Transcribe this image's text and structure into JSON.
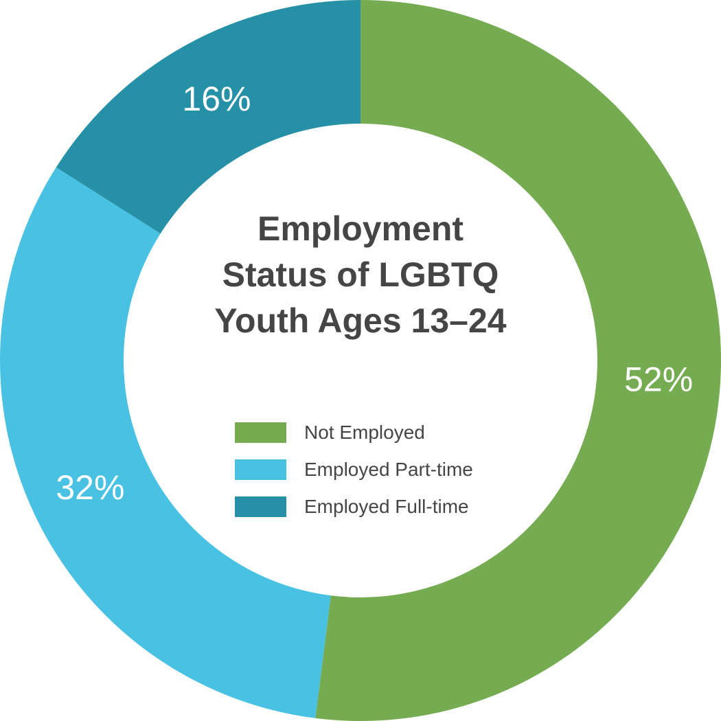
{
  "chart_data": {
    "type": "pie",
    "variant": "donut",
    "title_lines": [
      "Employment",
      "Status of LGBTQ",
      "Youth Ages 13–24"
    ],
    "legend_position": "center",
    "slices": [
      {
        "name": "Not Employed",
        "value": 52,
        "label": "52%",
        "color": "#75ac51"
      },
      {
        "name": "Employed Part-time",
        "value": 32,
        "label": "32%",
        "color": "#48c1e2"
      },
      {
        "name": "Employed Full-time",
        "value": 16,
        "label": "16%",
        "color": "#2690a6"
      }
    ]
  }
}
